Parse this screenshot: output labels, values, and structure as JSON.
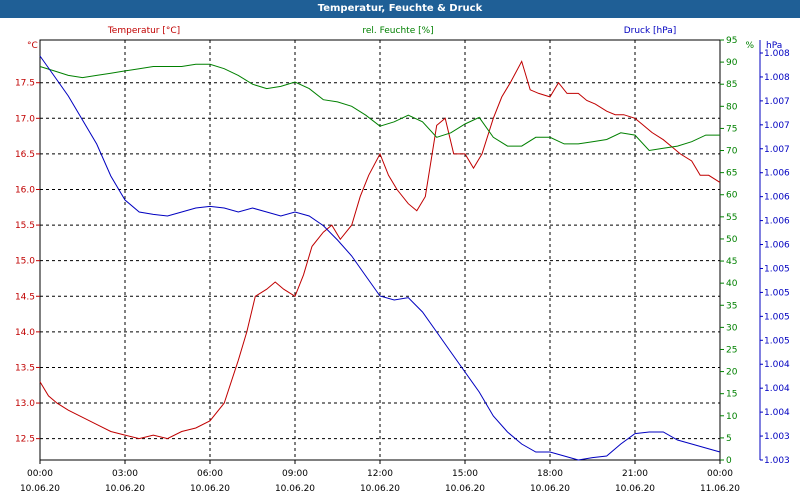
{
  "window": {
    "title": "Temperatur, Feuchte & Druck"
  },
  "colors": {
    "temperature": "#c00000",
    "humidity": "#008000",
    "pressure": "#0000c0",
    "grid": "#000000",
    "title_bar": "#1f5f96"
  },
  "chart_data": {
    "type": "line",
    "title": "Temperatur, Feuchte & Druck",
    "grid": true,
    "x_ticks": [
      {
        "h": 0,
        "time": "00:00",
        "date": "10.06.20"
      },
      {
        "h": 3,
        "time": "03:00",
        "date": "10.06.20"
      },
      {
        "h": 6,
        "time": "06:00",
        "date": "10.06.20"
      },
      {
        "h": 9,
        "time": "09:00",
        "date": "10.06.20"
      },
      {
        "h": 12,
        "time": "12:00",
        "date": "10.06.20"
      },
      {
        "h": 15,
        "time": "15:00",
        "date": "10.06.20"
      },
      {
        "h": 18,
        "time": "18:00",
        "date": "10.06.20"
      },
      {
        "h": 21,
        "time": "21:00",
        "date": "10.06.20"
      },
      {
        "h": 24,
        "time": "00:00",
        "date": "11.06.20"
      }
    ],
    "axes": {
      "temperature": {
        "unit": "°C",
        "label": "Temperatur [°C]",
        "min": 12.2,
        "max": 18.1,
        "ticks": [
          "12.5",
          "13.0",
          "13.5",
          "14.0",
          "14.5",
          "15.0",
          "15.5",
          "16.0",
          "16.5",
          "17.0",
          "17.5"
        ]
      },
      "humidity": {
        "unit": "%",
        "label": "rel. Feuchte [%]",
        "min": 0,
        "max": 95,
        "ticks": [
          "0",
          "5",
          "10",
          "15",
          "20",
          "25",
          "30",
          "35",
          "40",
          "45",
          "50",
          "55",
          "60",
          "65",
          "70",
          "75",
          "80",
          "85",
          "90",
          "95"
        ]
      },
      "pressure": {
        "unit": "hPa",
        "label": "Druck [hPa]",
        "min": 1002.95,
        "max": 1008.2,
        "ticks": [
          "1.003",
          "1.003",
          "1.004",
          "1.004",
          "1.004",
          "1.005",
          "1.005",
          "1.005",
          "1.005",
          "1.006",
          "1.006",
          "1.006",
          "1.006",
          "1.007",
          "1.007",
          "1.007",
          "1.008",
          "1.008"
        ]
      }
    },
    "series": [
      {
        "name": "Temperatur [°C]",
        "axis": "temperature",
        "x": [
          0,
          0.3,
          0.6,
          1,
          1.5,
          2,
          2.5,
          3,
          3.5,
          4,
          4.5,
          5,
          5.5,
          6,
          6.5,
          7,
          7.3,
          7.6,
          8,
          8.3,
          8.6,
          9,
          9.3,
          9.6,
          10,
          10.3,
          10.6,
          11,
          11.3,
          11.6,
          12,
          12.3,
          12.6,
          13,
          13.3,
          13.6,
          14,
          14.3,
          14.6,
          15,
          15.3,
          15.6,
          16,
          16.3,
          16.6,
          17,
          17.3,
          17.6,
          18,
          18.3,
          18.6,
          19,
          19.3,
          19.6,
          20,
          20.3,
          20.6,
          21,
          21.3,
          21.6,
          22,
          22.3,
          22.6,
          23,
          23.3,
          23.6,
          24
        ],
        "values": [
          13.3,
          13.1,
          13.0,
          12.9,
          12.8,
          12.7,
          12.6,
          12.55,
          12.5,
          12.55,
          12.5,
          12.6,
          12.65,
          12.75,
          13.0,
          13.6,
          14.0,
          14.5,
          14.6,
          14.7,
          14.6,
          14.5,
          14.8,
          15.2,
          15.4,
          15.5,
          15.3,
          15.5,
          15.9,
          16.2,
          16.5,
          16.2,
          16.0,
          15.8,
          15.7,
          15.9,
          16.9,
          17.0,
          16.5,
          16.5,
          16.3,
          16.5,
          17.0,
          17.3,
          17.5,
          17.8,
          17.4,
          17.35,
          17.3,
          17.5,
          17.35,
          17.35,
          17.25,
          17.2,
          17.1,
          17.05,
          17.05,
          17.0,
          16.9,
          16.8,
          16.7,
          16.6,
          16.5,
          16.4,
          16.2,
          16.2,
          16.1
        ]
      },
      {
        "name": "rel. Feuchte [%]",
        "axis": "humidity",
        "x": [
          0,
          0.5,
          1,
          1.5,
          2,
          2.5,
          3,
          3.5,
          4,
          4.5,
          5,
          5.5,
          6,
          6.5,
          7,
          7.5,
          8,
          8.5,
          9,
          9.5,
          10,
          10.5,
          11,
          11.5,
          12,
          12.5,
          13,
          13.5,
          14,
          14.5,
          15,
          15.5,
          16,
          16.5,
          17,
          17.5,
          18,
          18.5,
          19,
          19.5,
          20,
          20.5,
          21,
          21.5,
          22,
          22.5,
          23,
          23.5,
          24
        ],
        "values": [
          89,
          88,
          87,
          86.5,
          87,
          87.5,
          88,
          88.5,
          89,
          89,
          89,
          89.5,
          89.5,
          88.5,
          87,
          85,
          84,
          84.5,
          85.5,
          84,
          81.5,
          81,
          80,
          78,
          75.5,
          76.5,
          78,
          76.5,
          73,
          74,
          76,
          77.5,
          73,
          71,
          71,
          73,
          73,
          71.5,
          71.5,
          72,
          72.5,
          74,
          73.5,
          70,
          70.5,
          71,
          72,
          73.5,
          73.5
        ]
      },
      {
        "name": "Druck [hPa]",
        "axis": "pressure",
        "x": [
          0,
          0.5,
          1,
          1.5,
          2,
          2.5,
          3,
          3.5,
          4,
          4.5,
          5,
          5.5,
          6,
          6.5,
          7,
          7.5,
          8,
          8.5,
          9,
          9.5,
          10,
          10.5,
          11,
          11.5,
          12,
          12.5,
          13,
          13.5,
          14,
          14.5,
          15,
          15.5,
          16,
          16.5,
          17,
          17.5,
          18,
          18.5,
          19,
          19.5,
          20,
          20.5,
          21,
          21.5,
          22,
          22.5,
          23,
          23.5,
          24
        ],
        "values": [
          1008.0,
          1007.75,
          1007.5,
          1007.2,
          1006.9,
          1006.5,
          1006.2,
          1006.05,
          1006.02,
          1006.0,
          1006.05,
          1006.1,
          1006.12,
          1006.1,
          1006.05,
          1006.1,
          1006.05,
          1006.0,
          1006.05,
          1006.0,
          1005.88,
          1005.7,
          1005.5,
          1005.25,
          1005.0,
          1004.95,
          1004.98,
          1004.8,
          1004.55,
          1004.3,
          1004.05,
          1003.8,
          1003.5,
          1003.3,
          1003.15,
          1003.05,
          1003.05,
          1003.0,
          1002.95,
          1002.98,
          1003.0,
          1003.15,
          1003.28,
          1003.3,
          1003.3,
          1003.2,
          1003.15,
          1003.1,
          1003.05
        ]
      }
    ]
  }
}
